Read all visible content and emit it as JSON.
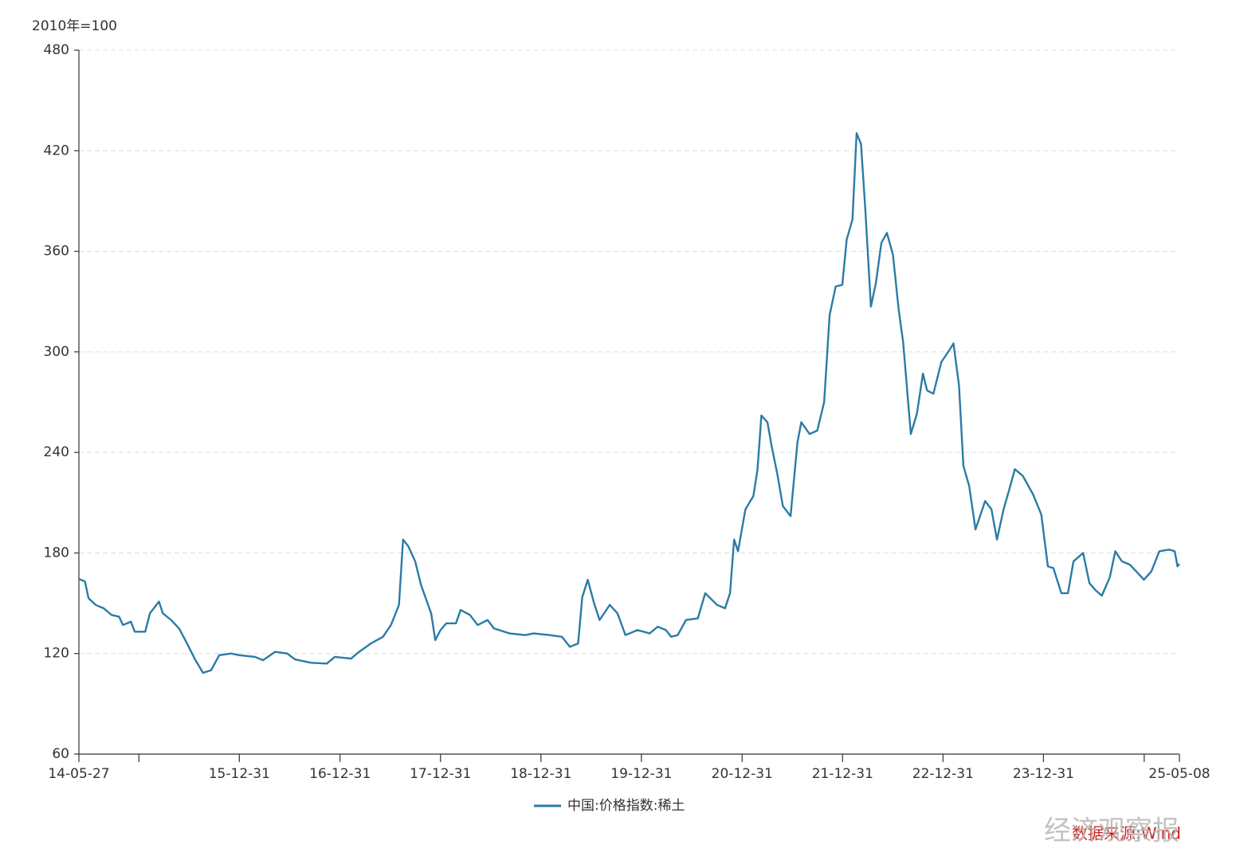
{
  "chart_data": {
    "type": "line",
    "y_axis_label": "2010年=100",
    "x": [
      "14-05-27",
      "14-06-18",
      "14-07-01",
      "14-07-27",
      "14-08-25",
      "14-09-23",
      "14-10-20",
      "14-11-03",
      "14-12-02",
      "14-12-16",
      "15-01-23",
      "15-02-09",
      "15-03-14",
      "15-03-28",
      "15-04-27",
      "15-05-26",
      "15-06-24",
      "15-07-23",
      "15-08-21",
      "15-09-19",
      "15-10-19",
      "15-12-01",
      "15-12-31",
      "16-02-26",
      "16-03-26",
      "16-05-09",
      "16-06-22",
      "16-07-20",
      "16-09-16",
      "16-11-13",
      "16-12-12",
      "17-02-09",
      "17-03-10",
      "17-04-22",
      "17-06-05",
      "17-07-04",
      "17-08-02",
      "17-08-17",
      "17-09-05",
      "17-09-30",
      "17-10-21",
      "17-11-27",
      "17-12-12",
      "17-12-31",
      "18-01-21",
      "18-02-25",
      "18-03-14",
      "18-04-17",
      "18-05-15",
      "18-06-20",
      "18-07-13",
      "18-09-08",
      "18-11-04",
      "18-12-04",
      "19-02-01",
      "19-03-17",
      "19-04-15",
      "19-05-15",
      "19-05-30",
      "19-06-19",
      "19-07-12",
      "19-08-01",
      "19-09-07",
      "19-10-05",
      "19-11-03",
      "19-12-17",
      "20-01-30",
      "20-02-28",
      "20-03-29",
      "20-04-17",
      "20-05-11",
      "20-06-10",
      "20-07-23",
      "20-08-19",
      "20-10-01",
      "20-10-30",
      "20-11-17",
      "20-12-02",
      "20-12-16",
      "21-01-12",
      "21-02-10",
      "21-02-25",
      "21-03-11",
      "21-04-02",
      "21-04-17",
      "21-05-08",
      "21-05-28",
      "21-06-25",
      "21-07-20",
      "21-08-03",
      "21-09-02",
      "21-09-30",
      "21-10-25",
      "21-11-14",
      "21-12-06",
      "21-12-30",
      "22-01-15",
      "22-02-05",
      "22-02-20",
      "22-03-08",
      "22-03-24",
      "22-04-13",
      "22-05-01",
      "22-05-21",
      "22-06-10",
      "22-07-02",
      "22-07-23",
      "22-08-08",
      "22-09-05",
      "22-09-27",
      "22-10-19",
      "22-11-03",
      "22-11-26",
      "22-12-25",
      "23-01-23",
      "23-02-07",
      "23-02-27",
      "23-03-15",
      "23-04-05",
      "23-04-28",
      "23-06-02",
      "23-06-25",
      "23-07-15",
      "23-08-08",
      "23-08-29",
      "23-09-18",
      "23-10-17",
      "23-11-23",
      "23-12-23",
      "24-01-16",
      "24-02-05",
      "24-03-05",
      "24-03-29",
      "24-04-18",
      "24-05-23",
      "24-06-15",
      "24-07-06",
      "24-07-30",
      "24-08-28",
      "24-09-17",
      "24-10-11",
      "24-11-09",
      "24-12-08",
      "24-12-30",
      "25-01-26",
      "25-02-24",
      "25-04-01",
      "25-04-21",
      "25-05-01",
      "25-05-08"
    ],
    "series": [
      {
        "name": "中国:价格指数:稀土",
        "color": "#2b7ba6",
        "values": [
          164.5,
          163,
          153,
          149,
          147,
          143,
          142,
          137,
          139,
          133,
          133,
          144,
          151,
          144,
          140,
          135,
          126,
          116.5,
          108.5,
          110,
          119,
          120,
          119,
          118,
          116,
          121,
          120,
          116.5,
          114.5,
          114,
          118,
          117,
          121,
          126,
          130,
          137,
          149,
          188,
          184,
          175,
          161,
          144,
          128,
          134,
          138,
          138,
          146,
          143,
          137,
          140,
          135,
          132,
          131,
          132,
          131,
          130,
          124,
          126,
          153.5,
          164,
          150,
          140,
          149,
          144,
          131,
          134,
          132,
          136,
          134,
          130,
          131,
          140,
          141,
          156,
          149,
          147,
          156,
          188,
          181,
          206,
          214,
          230,
          262,
          258,
          244,
          227,
          208,
          202,
          246,
          258,
          251,
          253,
          270,
          322,
          339,
          340,
          367,
          379,
          430.5,
          424,
          384,
          327,
          341,
          365,
          371,
          358,
          325,
          306,
          251,
          263,
          287,
          277,
          275,
          294,
          301,
          305,
          280,
          232,
          220,
          194,
          211,
          206,
          188,
          206,
          218,
          230,
          226,
          215,
          203,
          172,
          171,
          156,
          156,
          175,
          180,
          162,
          158,
          154.5,
          165.5,
          181,
          175,
          173,
          168,
          164,
          169,
          181,
          182,
          181,
          172,
          173.5
        ]
      }
    ],
    "xlim": [
      "14-05-27",
      "25-05-08"
    ],
    "xticks": [
      "14-05-27",
      {
        "value": "14-12-31",
        "label": null
      },
      "15-12-31",
      "16-12-31",
      "17-12-31",
      "18-12-31",
      "19-12-31",
      "20-12-31",
      "21-12-31",
      "22-12-31",
      "23-12-31",
      {
        "value": "24-12-31",
        "label": null
      },
      "25-05-08"
    ],
    "ylim": [
      60,
      480
    ],
    "yticks": [
      60,
      120,
      180,
      240,
      300,
      360,
      420,
      480
    ],
    "grid": true,
    "legend": "bottom",
    "watermark": "经济观察报",
    "source": "数据来源:Wind"
  }
}
